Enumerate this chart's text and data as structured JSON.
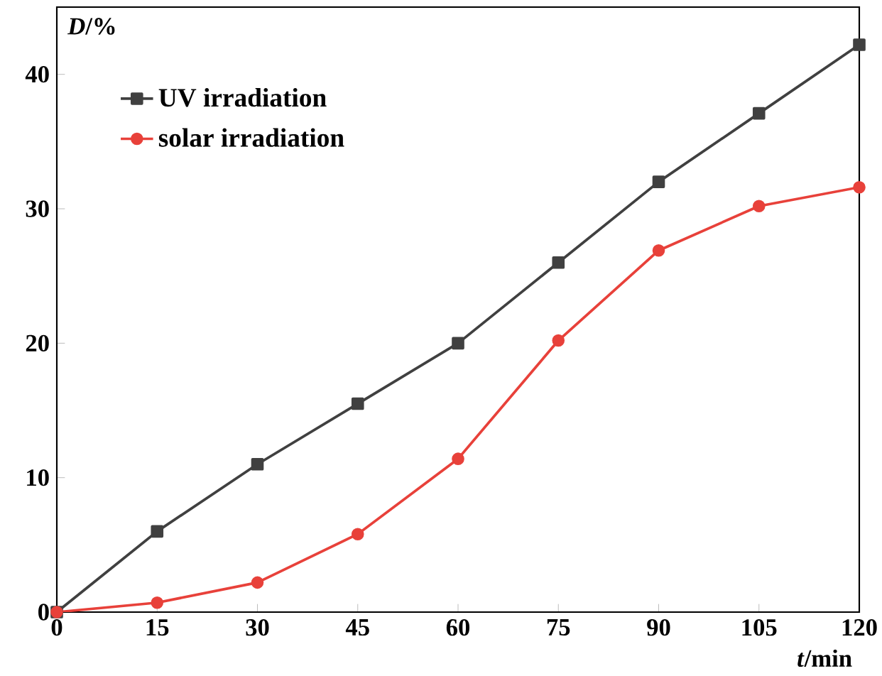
{
  "chart_data": {
    "type": "line",
    "xlabel": "*t*/min",
    "ylabel": "*D*/%",
    "x": [
      0,
      15,
      30,
      45,
      60,
      75,
      90,
      105,
      120
    ],
    "series": [
      {
        "name": "UV irradiation",
        "color": "#404040",
        "marker": "square",
        "values": [
          0,
          6,
          11,
          15.5,
          20,
          26,
          32,
          37.1,
          42.2
        ]
      },
      {
        "name": "solar irradiation",
        "color": "#e8413a",
        "marker": "circle",
        "values": [
          0,
          0.7,
          2.2,
          5.8,
          11.4,
          20.2,
          26.9,
          30.2,
          31.6
        ]
      }
    ],
    "xlim": [
      0,
      120
    ],
    "ylim": [
      0,
      45
    ],
    "xticks": [
      0,
      15,
      30,
      45,
      60,
      75,
      90,
      105,
      120
    ],
    "yticks": [
      0,
      10,
      20,
      30,
      40
    ],
    "grid": false,
    "legend": "top left",
    "line_style": "solid"
  }
}
